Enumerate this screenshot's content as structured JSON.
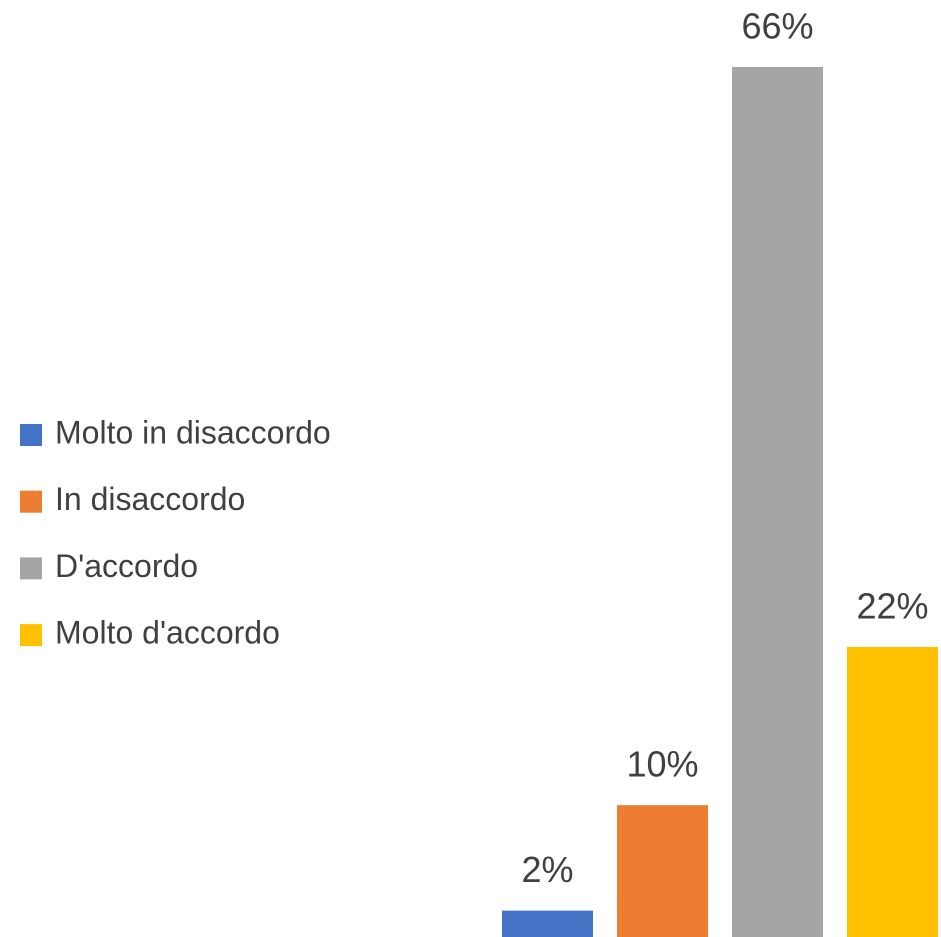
{
  "chart_data": {
    "type": "bar",
    "legend": "left",
    "series": [
      {
        "name": "Molto in disaccordo",
        "color": "#4472c4",
        "values": [
          2
        ],
        "value_labels": [
          "2%"
        ]
      },
      {
        "name": "In disaccordo",
        "color": "#ed7d31",
        "values": [
          10
        ],
        "value_labels": [
          "10%"
        ]
      },
      {
        "name": "D'accordo",
        "color": "#a5a5a5",
        "values": [
          66
        ],
        "value_labels": [
          "66%"
        ]
      },
      {
        "name": "Molto d'accordo",
        "color": "#ffc000",
        "values": [
          22
        ],
        "value_labels": [
          "22%"
        ]
      }
    ]
  }
}
